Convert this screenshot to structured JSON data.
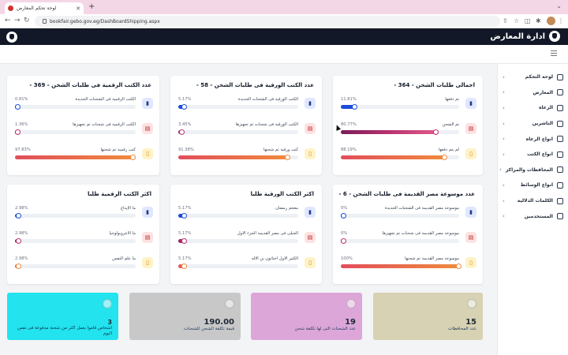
{
  "browser": {
    "tab_title": "لوحة تحكم المعارض",
    "url": "bookfair.gebo.gov.eg/DashBoardShipping.aspx"
  },
  "app": {
    "title": "ادارة المعارض"
  },
  "sidebar": {
    "items": [
      {
        "label": "لوحة التحكم",
        "icon": "dashboard-icon"
      },
      {
        "label": "المعارض",
        "icon": "exhibition-icon"
      },
      {
        "label": "الرعاه",
        "icon": "sponsor-icon"
      },
      {
        "label": "الناشرين",
        "icon": "publisher-icon"
      },
      {
        "label": "انواع الرعاه",
        "icon": "sponsor-type-icon"
      },
      {
        "label": "انواع الكتب",
        "icon": "book-type-icon"
      },
      {
        "label": "المحافظات والمراكز",
        "icon": "location-icon"
      },
      {
        "label": "انواع الوسائط",
        "icon": "media-icon"
      },
      {
        "label": "الكلمات الدلالية",
        "icon": "tag-icon"
      },
      {
        "label": "المستخدمين",
        "icon": "users-icon"
      }
    ]
  },
  "cards": {
    "total": {
      "title": "اجمالى طلبات الشحن - 364 -",
      "rows": [
        {
          "label": "تم دفعها",
          "pct": "11.81%",
          "value": 0.1181,
          "color": "#1d4ed8"
        },
        {
          "label": "تم الشحن",
          "pct": "80.77%",
          "value": 0.8077,
          "color": "#b8326e"
        },
        {
          "label": "لم يتم دفعها",
          "pct": "88.19%",
          "value": 0.8819,
          "color": "#f08a3c"
        }
      ]
    },
    "paper": {
      "title": "عدد الكتب الورقية فى طلبات الشحن - 58 -",
      "rows": [
        {
          "label": "الكتب الورقية فى الشحنات الجديدة",
          "pct": "5.17%",
          "value": 0.0517,
          "color": "#1d4ed8"
        },
        {
          "label": "الكتب الورقية فى شحنات تم تجهيزها",
          "pct": "3.45%",
          "value": 0.0345,
          "color": "#b8326e"
        },
        {
          "label": "كتب ورقية تم شحنها",
          "pct": "91.38%",
          "value": 0.9138,
          "color": "#f08a3c"
        }
      ]
    },
    "digital": {
      "title": "عدد الكتب الرقمية فى طلبات الشحن - 369 -",
      "rows": [
        {
          "label": "الكتب الرقمية فى الشحنات الجديدة",
          "pct": "0.81%",
          "value": 0.0081,
          "color": "#1d4ed8"
        },
        {
          "label": "الكتب الرقمية فى شحنات تم تجهيزها",
          "pct": "1.36%",
          "value": 0.0136,
          "color": "#b8326e"
        },
        {
          "label": "كتب رقمية تم شحنها",
          "pct": "97.83%",
          "value": 0.9783,
          "color": "#f08a3c"
        }
      ]
    },
    "encyclopedia": {
      "title": "عدد موسوعة مصر القديمة فى طلبات الشحن - 6 -",
      "rows": [
        {
          "label": "موسوعة مصر القديمة فى الشحنات الجديدة",
          "pct": "0%",
          "value": 0,
          "color": "#1d4ed8"
        },
        {
          "label": "موسوعة مصر القديمة فى شحنات تم تجهيزها",
          "pct": "0%",
          "value": 0,
          "color": "#b8326e"
        },
        {
          "label": "موسوعة مصر القديمة تم شحنها",
          "pct": "100%",
          "value": 1,
          "color": "#f08a3c"
        }
      ]
    },
    "top_paper": {
      "title": "اكثر الكتب الورقية طلبا",
      "rows": [
        {
          "label": "معجم رمضان",
          "pct": "5.17%",
          "value": 0.0517,
          "color": "#1d4ed8"
        },
        {
          "label": "الجبلى فى مصر القديمة الجزء الاول",
          "pct": "5.17%",
          "value": 0.0517,
          "color": "#b8326e"
        },
        {
          "label": "الكثير الاول اختاتون بن الاله",
          "pct": "5.17%",
          "value": 0.0517,
          "color": "#f08a3c"
        }
      ]
    },
    "top_digital": {
      "title": "اكثر الكتب الرقمية طلبا",
      "rows": [
        {
          "label": "ما الإبداع",
          "pct": "2.98%",
          "value": 0.0298,
          "color": "#1d4ed8"
        },
        {
          "label": "ما الانثروبولوجيا",
          "pct": "2.98%",
          "value": 0.0298,
          "color": "#b8326e"
        },
        {
          "label": "ما علم النفس",
          "pct": "2.98%",
          "value": 0.0298,
          "color": "#f08a3c"
        }
      ]
    }
  },
  "tiles": [
    {
      "value": "15",
      "label": "عدد المحافظات",
      "color": "#d7d2b3"
    },
    {
      "value": "19",
      "label": "عدد الشحنات التى لها تكلفة شحن",
      "color": "#dda6d8"
    },
    {
      "value": "190.00",
      "label": "قيمة تكلفة الشحن للشحنات",
      "color": "#c8c8c8"
    },
    {
      "value": "3",
      "label": "اشخاص قاموا بعمل اكثر من شحنة مدفوعة فى نفس اليوم",
      "color": "#22e3ee"
    }
  ]
}
